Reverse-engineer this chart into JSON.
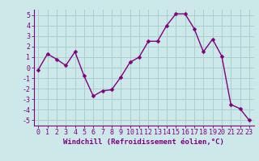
{
  "x": [
    0,
    1,
    2,
    3,
    4,
    5,
    6,
    7,
    8,
    9,
    10,
    11,
    12,
    13,
    14,
    15,
    16,
    17,
    18,
    19,
    20,
    21,
    22,
    23
  ],
  "y": [
    -0.2,
    1.3,
    0.8,
    0.2,
    1.5,
    -0.8,
    -2.7,
    -2.2,
    -2.1,
    -0.9,
    0.5,
    1.0,
    2.5,
    2.5,
    4.0,
    5.1,
    5.1,
    3.7,
    1.5,
    2.7,
    1.1,
    -3.5,
    -3.9,
    -5.0
  ],
  "line_color": "#800080",
  "marker": "D",
  "markersize": 2.5,
  "linewidth": 1.0,
  "xlabel": "Windchill (Refroidissement éolien,°C)",
  "xlim": [
    -0.5,
    23.5
  ],
  "ylim": [
    -5.5,
    5.5
  ],
  "yticks": [
    -5,
    -4,
    -3,
    -2,
    -1,
    0,
    1,
    2,
    3,
    4,
    5
  ],
  "xticks": [
    0,
    1,
    2,
    3,
    4,
    5,
    6,
    7,
    8,
    9,
    10,
    11,
    12,
    13,
    14,
    15,
    16,
    17,
    18,
    19,
    20,
    21,
    22,
    23
  ],
  "bg_color": "#cce8e8",
  "grid_color": "#aacfcf",
  "tick_color": "#800080",
  "label_color": "#800080",
  "axis_color": "#800080",
  "xlabel_fontsize": 6.5,
  "tick_fontsize": 6.0,
  "font_family": "monospace"
}
